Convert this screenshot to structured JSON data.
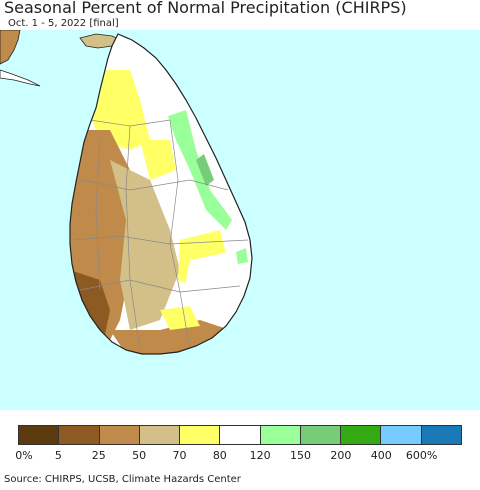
{
  "title": "Seasonal Percent of Normal Precipitation (CHIRPS)",
  "subtitle": "Oct. 1 - 5, 2022 [final]",
  "source": "Source: CHIRPS, UCSB, Climate Hazards Center",
  "colors": {
    "ocean": "#ccffff",
    "land_outline": "#222222",
    "district_border": "#888888"
  },
  "legend": {
    "labels": [
      "0%",
      "5",
      "25",
      "50",
      "70",
      "80",
      "120",
      "150",
      "200",
      "400",
      "600%"
    ],
    "colors": [
      "#5b3a0e",
      "#8c5a22",
      "#c08a4a",
      "#d3c088",
      "#ffff66",
      "#ffffff",
      "#99ff99",
      "#77cc77",
      "#33aa11",
      "#77ccff",
      "#1a7ab8"
    ]
  },
  "map_regions": [
    {
      "name": "west-coast-dry",
      "category": "25"
    },
    {
      "name": "southwest-very-dry",
      "category": "5"
    },
    {
      "name": "south-coast",
      "category": "25"
    },
    {
      "name": "central-tan",
      "category": "50"
    },
    {
      "name": "north-yellow",
      "category": "70"
    },
    {
      "name": "north-white",
      "category": "80"
    },
    {
      "name": "east-white",
      "category": "80"
    },
    {
      "name": "southeast-white",
      "category": "80"
    },
    {
      "name": "east-coast-green",
      "category": "120"
    },
    {
      "name": "east-coast-darkgreen",
      "category": "150"
    },
    {
      "name": "yellow-patches",
      "category": "70"
    },
    {
      "name": "india-coast-brown",
      "category": "25"
    }
  ]
}
